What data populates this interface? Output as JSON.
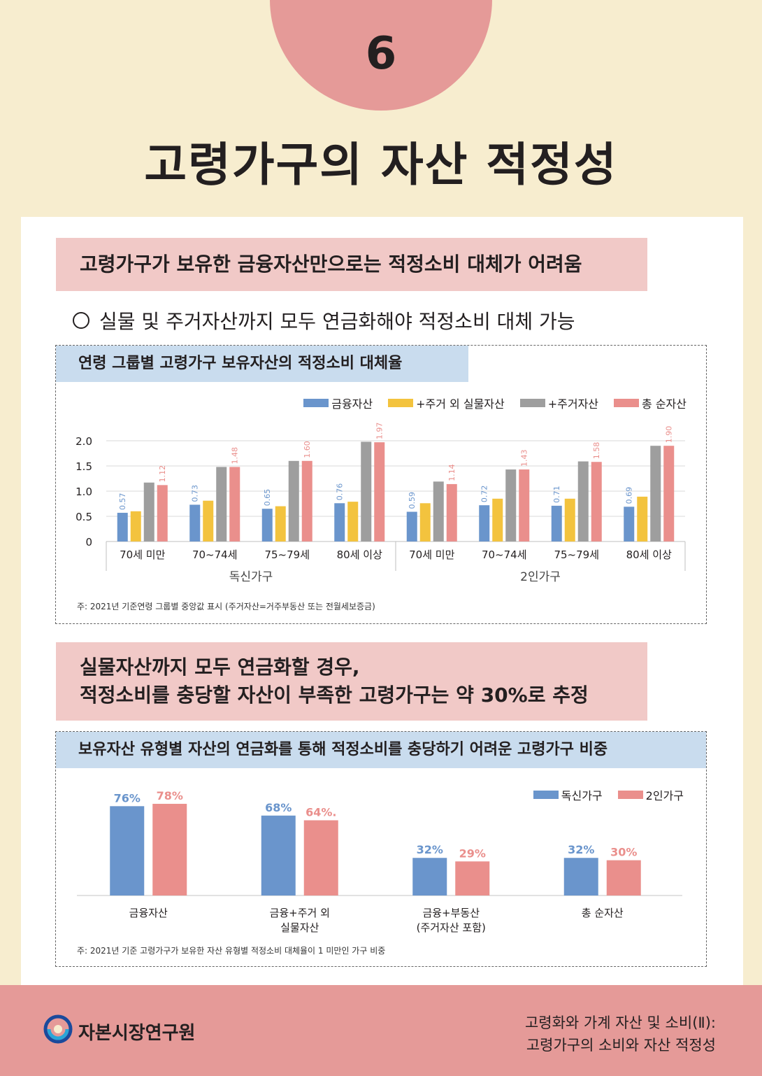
{
  "header": {
    "number": "6",
    "title": "고령가구의 자산 적정성"
  },
  "section1": {
    "headline": "고령가구가 보유한 금융자산만으로는 적정소비 대체가 어려움",
    "bullet": "실물 및 주거자산까지 모두 연금화해야 적정소비 대체 가능",
    "box_title": "연령 그룹별 고령가구 보유자산의 적정소비 대체율",
    "note": "주: 2021년 기준연령 그룹별 중앙값 표시 (주거자산=거주부동산 또는 전월세보증금)"
  },
  "section2": {
    "headline_line1": "실물자산까지 모두 연금화할 경우,",
    "headline_line2": "적정소비를 충당할 자산이 부족한 고령가구는 약 30%로 추정",
    "box_title": "보유자산 유형별 자산의 연금화를 통해 적정소비를 충당하기 어려운 고령가구 비중",
    "note": "주: 2021년 기준 고령가구가 보유한 자산 유형별 적정소비 대체율이 1 미만인 가구 비중"
  },
  "footer": {
    "org": "자본시장연구원",
    "title_line1": "고령화와 가계 자산 및 소비(Ⅱ):",
    "title_line2": "고령가구의 소비와 자산 적정성"
  },
  "chart_data": [
    {
      "type": "bar",
      "categories": [
        "70세 미만",
        "70~74세",
        "75~79세",
        "80세 이상",
        "70세 미만",
        "70~74세",
        "75~79세",
        "80세 이상"
      ],
      "groups": [
        {
          "label": "독신가구",
          "span": [
            0,
            3
          ]
        },
        {
          "label": "2인가구",
          "span": [
            4,
            7
          ]
        }
      ],
      "yticks": [
        "2.0",
        "1.5",
        "1.0",
        "0.5",
        "0"
      ],
      "ylim": [
        0,
        2.0
      ],
      "grid": true,
      "legend_position": "top-right",
      "series": [
        {
          "name": "금융자산",
          "color": "#6a95cc",
          "values": [
            0.57,
            0.73,
            0.65,
            0.76,
            0.59,
            0.72,
            0.71,
            0.69
          ],
          "labels": [
            "0.57",
            "0.73",
            "0.65",
            "0.76",
            "0.59",
            "0.72",
            "0.71",
            "0.69"
          ]
        },
        {
          "name": "+주거 외 실물자산",
          "color": "#f3c33e",
          "values": [
            0.6,
            0.81,
            0.7,
            0.79,
            0.76,
            0.85,
            0.85,
            0.89
          ]
        },
        {
          "name": "+주거자산",
          "color": "#9e9e9e",
          "values": [
            1.17,
            1.48,
            1.6,
            1.98,
            1.19,
            1.43,
            1.59,
            1.9
          ]
        },
        {
          "name": "총 순자산",
          "color": "#ea8f8c",
          "values": [
            1.12,
            1.48,
            1.6,
            1.97,
            1.14,
            1.43,
            1.58,
            1.9
          ],
          "labels": [
            "1.12",
            "1.48",
            "1.60",
            "1.97",
            "1.14",
            "1.43",
            "1.58",
            "1.90"
          ]
        }
      ]
    },
    {
      "type": "bar",
      "categories": [
        [
          "금융자산"
        ],
        [
          "금융+주거 외",
          "실물자산"
        ],
        [
          "금융+부동산",
          "(주거자산 포함)"
        ],
        [
          "총 순자산"
        ]
      ],
      "legend_position": "top-right",
      "ylim": [
        0,
        100
      ],
      "series": [
        {
          "name": "독신가구",
          "color": "#6a95cc",
          "values": [
            76,
            68,
            32,
            32
          ],
          "labels": [
            "76%",
            "68%",
            "32%",
            "32%"
          ]
        },
        {
          "name": "2인가구",
          "color": "#ea8f8c",
          "values": [
            78,
            64,
            29,
            30
          ],
          "labels": [
            "78%",
            "64%.",
            "29%",
            "30%"
          ]
        }
      ]
    }
  ]
}
